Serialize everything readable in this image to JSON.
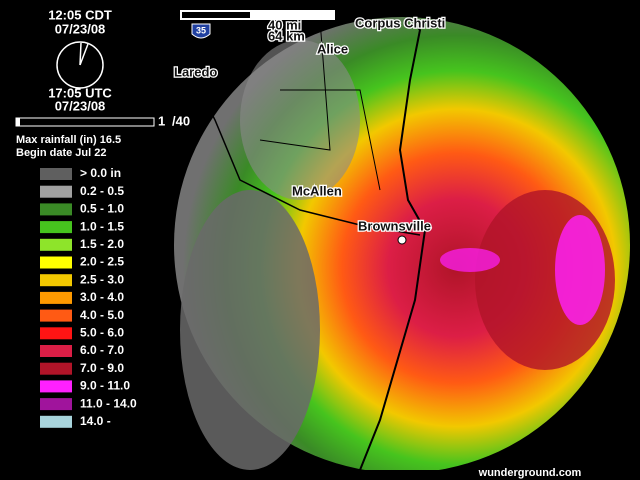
{
  "header": {
    "local_time": "12:05 CDT",
    "local_date": "07/23/08",
    "utc_time": "17:05 UTC",
    "utc_date": "07/23/08",
    "frame": "1",
    "frame_total": "/40",
    "max_rainfall": "Max rainfall (in) 16.5",
    "begin_date": "Begin date Jul 22"
  },
  "legend": [
    {
      "label": "> 0.0 in",
      "color": "#5f5f5f"
    },
    {
      "label": "0.2 - 0.5",
      "color": "#a0a0a0"
    },
    {
      "label": "0.5 - 1.0",
      "color": "#3a8a26"
    },
    {
      "label": "1.0 - 1.5",
      "color": "#46c41e"
    },
    {
      "label": "1.5 - 2.0",
      "color": "#8ee42a"
    },
    {
      "label": "2.0 - 2.5",
      "color": "#ffff00"
    },
    {
      "label": "2.5 - 3.0",
      "color": "#f2c800"
    },
    {
      "label": "3.0 - 4.0",
      "color": "#ff9a00"
    },
    {
      "label": "4.0 - 5.0",
      "color": "#ff5a14"
    },
    {
      "label": "5.0 - 6.0",
      "color": "#ff1414"
    },
    {
      "label": "6.0 - 7.0",
      "color": "#dc1e46"
    },
    {
      "label": "7.0 - 9.0",
      "color": "#b01428"
    },
    {
      "label": "9.0 - 11.0",
      "color": "#ff20ff"
    },
    {
      "label": "11.0 - 14.0",
      "color": "#a0149c"
    },
    {
      "label": "14.0 -",
      "color": "#a8d4dc"
    }
  ],
  "map": {
    "scale_mi": "40 mi",
    "scale_km": "64 km",
    "highway": "35",
    "cities": [
      "Corpus Christi",
      "Alice",
      "Laredo",
      "McAllen",
      "Brownsville"
    ],
    "credit": "wunderground.com"
  }
}
